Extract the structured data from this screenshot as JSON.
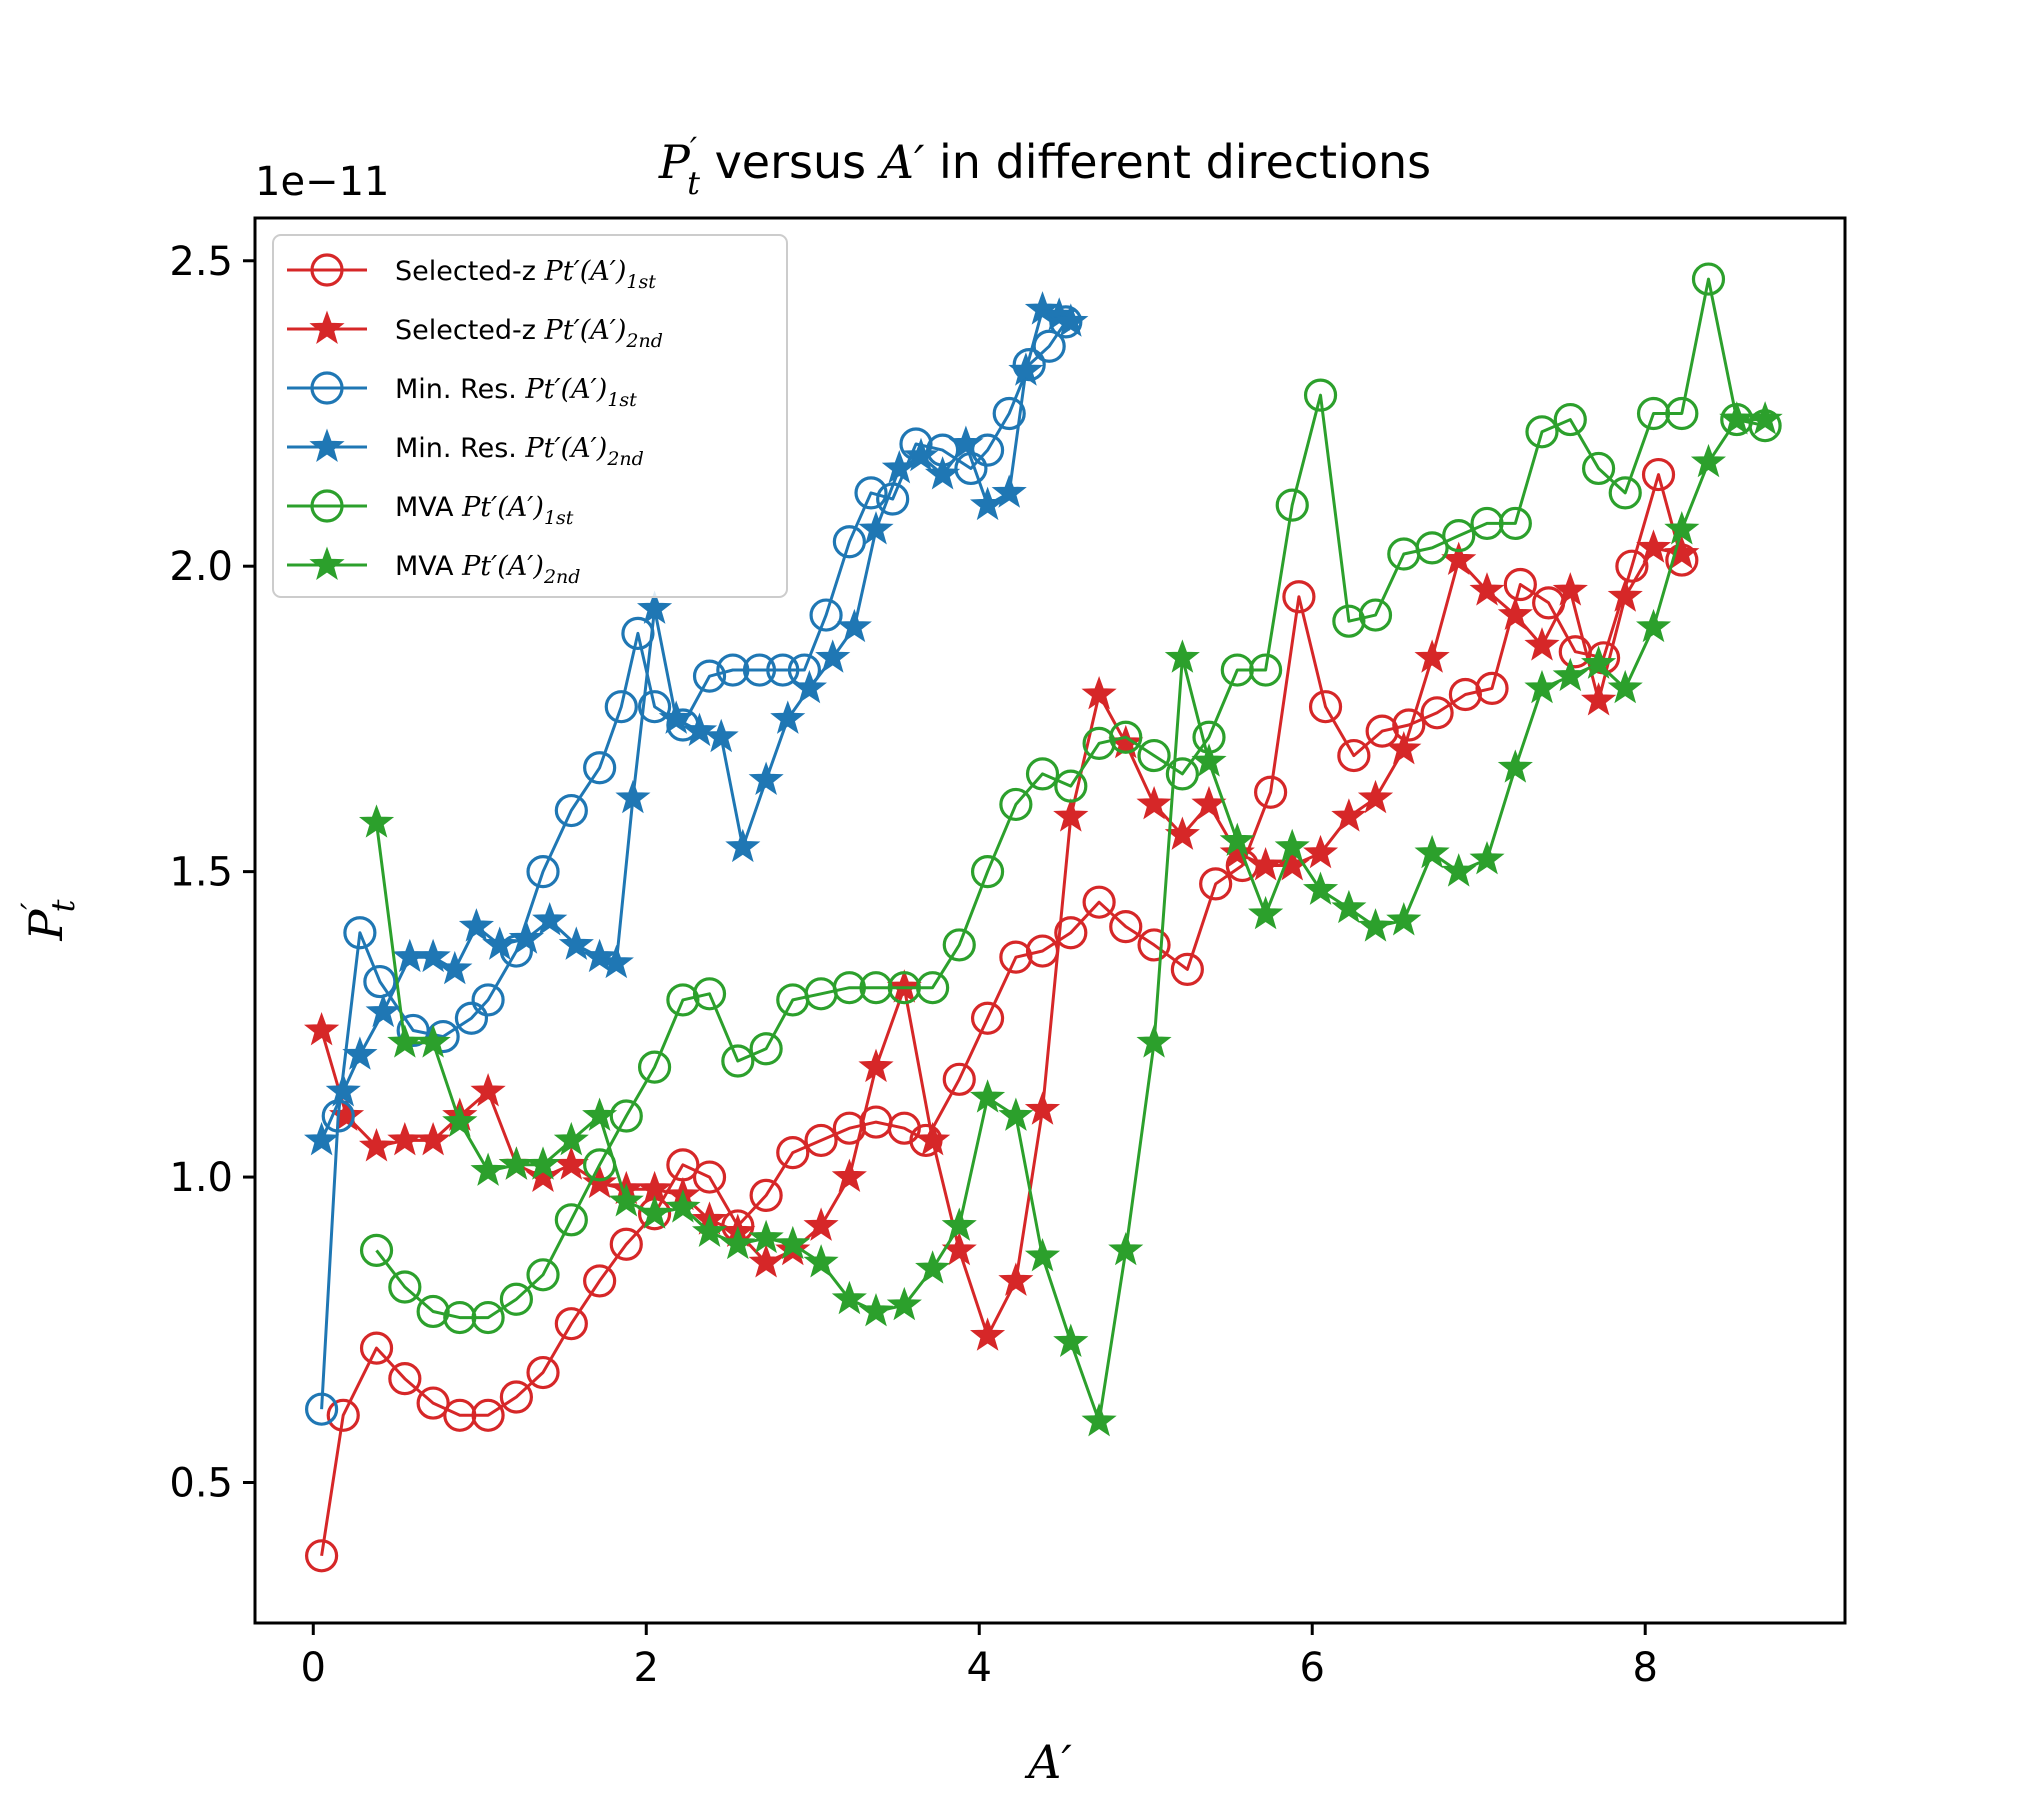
{
  "chart_data": {
    "type": "line",
    "title": "P't versus A' in different directions",
    "xlabel": "A'",
    "ylabel": "P't",
    "y_offset_text": "1e−11",
    "xlim": [
      -0.35,
      9.2
    ],
    "ylim": [
      0.27,
      2.57
    ],
    "x_ticks": [
      0,
      2,
      4,
      6,
      8
    ],
    "x_tick_labels": [
      "0",
      "2",
      "4",
      "6",
      "8"
    ],
    "y_ticks": [
      0.5,
      1.0,
      1.5,
      2.0,
      2.5
    ],
    "y_tick_labels": [
      "0.5",
      "1.0",
      "1.5",
      "2.0",
      "2.5"
    ],
    "grid": false,
    "legend_position": "upper-left",
    "colors": {
      "red": "#d62728",
      "blue": "#1f77b4",
      "green": "#2ca02c"
    },
    "series": [
      {
        "name": "Selected-z Pt'(A')1st",
        "legend_prefix": "Selected-z",
        "legend_sub": "1st",
        "color": "#d62728",
        "marker": "circle",
        "x": [
          0.05,
          0.18,
          0.38,
          0.55,
          0.72,
          0.88,
          1.05,
          1.22,
          1.38,
          1.55,
          1.72,
          1.88,
          2.05,
          2.22,
          2.38,
          2.55,
          2.72,
          2.88,
          3.05,
          3.22,
          3.38,
          3.55,
          3.68,
          3.88,
          4.05,
          4.22,
          4.38,
          4.55,
          4.72,
          4.88,
          5.05,
          5.25,
          5.42,
          5.58,
          5.75,
          5.92,
          6.08,
          6.25,
          6.42,
          6.58,
          6.75,
          6.92,
          7.08,
          7.25,
          7.42,
          7.58,
          7.75,
          7.92,
          8.08,
          8.22
        ],
        "y": [
          0.38,
          0.61,
          0.72,
          0.67,
          0.63,
          0.61,
          0.61,
          0.64,
          0.68,
          0.76,
          0.83,
          0.89,
          0.94,
          1.02,
          1.0,
          0.92,
          0.97,
          1.04,
          1.06,
          1.08,
          1.09,
          1.08,
          1.06,
          1.16,
          1.26,
          1.36,
          1.37,
          1.4,
          1.45,
          1.41,
          1.38,
          1.34,
          1.48,
          1.51,
          1.63,
          1.95,
          1.77,
          1.69,
          1.73,
          1.74,
          1.76,
          1.79,
          1.8,
          1.97,
          1.94,
          1.86,
          1.85,
          2.0,
          2.15,
          2.01
        ]
      },
      {
        "name": "Selected-z Pt'(A')2nd",
        "legend_prefix": "Selected-z",
        "legend_sub": "2nd",
        "color": "#d62728",
        "marker": "star",
        "x": [
          0.05,
          0.2,
          0.38,
          0.55,
          0.72,
          0.88,
          1.05,
          1.22,
          1.38,
          1.55,
          1.72,
          1.88,
          2.05,
          2.22,
          2.38,
          2.55,
          2.72,
          2.88,
          3.05,
          3.22,
          3.38,
          3.55,
          3.72,
          3.88,
          4.05,
          4.22,
          4.38,
          4.55,
          4.72,
          4.88,
          5.05,
          5.22,
          5.38,
          5.55,
          5.72,
          5.88,
          6.05,
          6.22,
          6.38,
          6.55,
          6.72,
          6.88,
          7.05,
          7.22,
          7.38,
          7.55,
          7.72,
          7.88,
          8.05,
          8.22
        ],
        "y": [
          1.24,
          1.1,
          1.05,
          1.06,
          1.06,
          1.1,
          1.14,
          1.02,
          1.0,
          1.02,
          0.99,
          0.98,
          0.98,
          0.97,
          0.93,
          0.91,
          0.86,
          0.88,
          0.92,
          1.0,
          1.18,
          1.31,
          1.06,
          0.88,
          0.74,
          0.83,
          1.11,
          1.59,
          1.79,
          1.71,
          1.61,
          1.56,
          1.61,
          1.53,
          1.51,
          1.51,
          1.53,
          1.59,
          1.62,
          1.7,
          1.85,
          2.01,
          1.96,
          1.92,
          1.87,
          1.96,
          1.78,
          1.95,
          2.03,
          2.02
        ]
      },
      {
        "name": "Min. Res. Pt'(A')1st",
        "legend_prefix": "Min. Res.",
        "legend_sub": "1st",
        "color": "#1f77b4",
        "marker": "circle",
        "x": [
          0.05,
          0.15,
          0.28,
          0.4,
          0.6,
          0.78,
          0.95,
          1.05,
          1.22,
          1.38,
          1.55,
          1.72,
          1.85,
          1.95,
          2.05,
          2.22,
          2.38,
          2.52,
          2.68,
          2.82,
          2.95,
          3.08,
          3.22,
          3.35,
          3.48,
          3.62,
          3.78,
          3.95,
          4.05,
          4.18,
          4.3,
          4.42,
          4.52
        ],
        "y": [
          0.62,
          1.1,
          1.4,
          1.32,
          1.24,
          1.23,
          1.26,
          1.29,
          1.37,
          1.5,
          1.6,
          1.67,
          1.77,
          1.89,
          1.77,
          1.74,
          1.82,
          1.83,
          1.83,
          1.83,
          1.83,
          1.92,
          2.04,
          2.12,
          2.11,
          2.2,
          2.19,
          2.16,
          2.19,
          2.25,
          2.33,
          2.36,
          2.4
        ]
      },
      {
        "name": "Min. Res. Pt'(A')2nd",
        "legend_prefix": "Min. Res.",
        "legend_sub": "2nd",
        "color": "#1f77b4",
        "marker": "star",
        "x": [
          0.05,
          0.18,
          0.28,
          0.42,
          0.58,
          0.72,
          0.85,
          0.98,
          1.12,
          1.28,
          1.42,
          1.58,
          1.72,
          1.82,
          1.92,
          2.05,
          2.18,
          2.32,
          2.45,
          2.58,
          2.72,
          2.85,
          2.98,
          3.12,
          3.25,
          3.38,
          3.52,
          3.65,
          3.78,
          3.92,
          4.05,
          4.18,
          4.28,
          4.38,
          4.48,
          4.55
        ],
        "y": [
          1.06,
          1.14,
          1.2,
          1.27,
          1.36,
          1.36,
          1.34,
          1.41,
          1.38,
          1.39,
          1.42,
          1.38,
          1.36,
          1.35,
          1.62,
          1.93,
          1.75,
          1.73,
          1.72,
          1.54,
          1.65,
          1.75,
          1.8,
          1.85,
          1.9,
          2.06,
          2.16,
          2.18,
          2.15,
          2.2,
          2.1,
          2.12,
          2.32,
          2.42,
          2.41,
          2.4
        ]
      },
      {
        "name": "MVA Pt'(A')1st",
        "legend_prefix": "MVA",
        "legend_sub": "1st",
        "color": "#2ca02c",
        "marker": "circle",
        "x": [
          0.38,
          0.55,
          0.72,
          0.88,
          1.05,
          1.22,
          1.38,
          1.55,
          1.72,
          1.88,
          2.05,
          2.22,
          2.38,
          2.55,
          2.72,
          2.88,
          3.05,
          3.22,
          3.38,
          3.55,
          3.72,
          3.88,
          4.05,
          4.22,
          4.38,
          4.55,
          4.72,
          4.88,
          5.05,
          5.22,
          5.38,
          5.55,
          5.72,
          5.88,
          6.05,
          6.22,
          6.38,
          6.55,
          6.72,
          6.88,
          7.05,
          7.22,
          7.38,
          7.55,
          7.72,
          7.88,
          8.05,
          8.22,
          8.38,
          8.55,
          8.72
        ],
        "y": [
          0.88,
          0.82,
          0.78,
          0.77,
          0.77,
          0.8,
          0.84,
          0.93,
          1.02,
          1.1,
          1.18,
          1.29,
          1.3,
          1.19,
          1.21,
          1.29,
          1.3,
          1.31,
          1.31,
          1.31,
          1.31,
          1.38,
          1.5,
          1.61,
          1.66,
          1.64,
          1.71,
          1.72,
          1.69,
          1.66,
          1.72,
          1.83,
          1.83,
          2.1,
          2.28,
          1.91,
          1.92,
          2.02,
          2.03,
          2.05,
          2.07,
          2.07,
          2.22,
          2.24,
          2.16,
          2.12,
          2.25,
          2.25,
          2.47,
          2.24,
          2.23
        ]
      },
      {
        "name": "MVA Pt'(A')2nd",
        "legend_prefix": "MVA",
        "legend_sub": "2nd",
        "color": "#2ca02c",
        "marker": "star",
        "x": [
          0.38,
          0.55,
          0.72,
          0.88,
          1.05,
          1.22,
          1.38,
          1.55,
          1.72,
          1.88,
          2.05,
          2.22,
          2.38,
          2.55,
          2.72,
          2.88,
          3.05,
          3.22,
          3.38,
          3.55,
          3.72,
          3.88,
          4.05,
          4.22,
          4.38,
          4.55,
          4.72,
          4.88,
          5.05,
          5.22,
          5.38,
          5.55,
          5.72,
          5.88,
          6.05,
          6.22,
          6.38,
          6.55,
          6.72,
          6.88,
          7.05,
          7.22,
          7.38,
          7.55,
          7.72,
          7.88,
          8.05,
          8.22,
          8.38,
          8.55,
          8.72
        ],
        "y": [
          1.58,
          1.22,
          1.22,
          1.09,
          1.01,
          1.02,
          1.02,
          1.06,
          1.1,
          0.96,
          0.94,
          0.95,
          0.91,
          0.89,
          0.9,
          0.89,
          0.86,
          0.8,
          0.78,
          0.79,
          0.85,
          0.92,
          1.13,
          1.1,
          0.87,
          0.73,
          0.6,
          0.88,
          1.22,
          1.85,
          1.68,
          1.55,
          1.43,
          1.54,
          1.47,
          1.44,
          1.41,
          1.42,
          1.53,
          1.5,
          1.52,
          1.67,
          1.8,
          1.82,
          1.84,
          1.8,
          1.9,
          2.06,
          2.17,
          2.24,
          2.24
        ]
      }
    ]
  }
}
